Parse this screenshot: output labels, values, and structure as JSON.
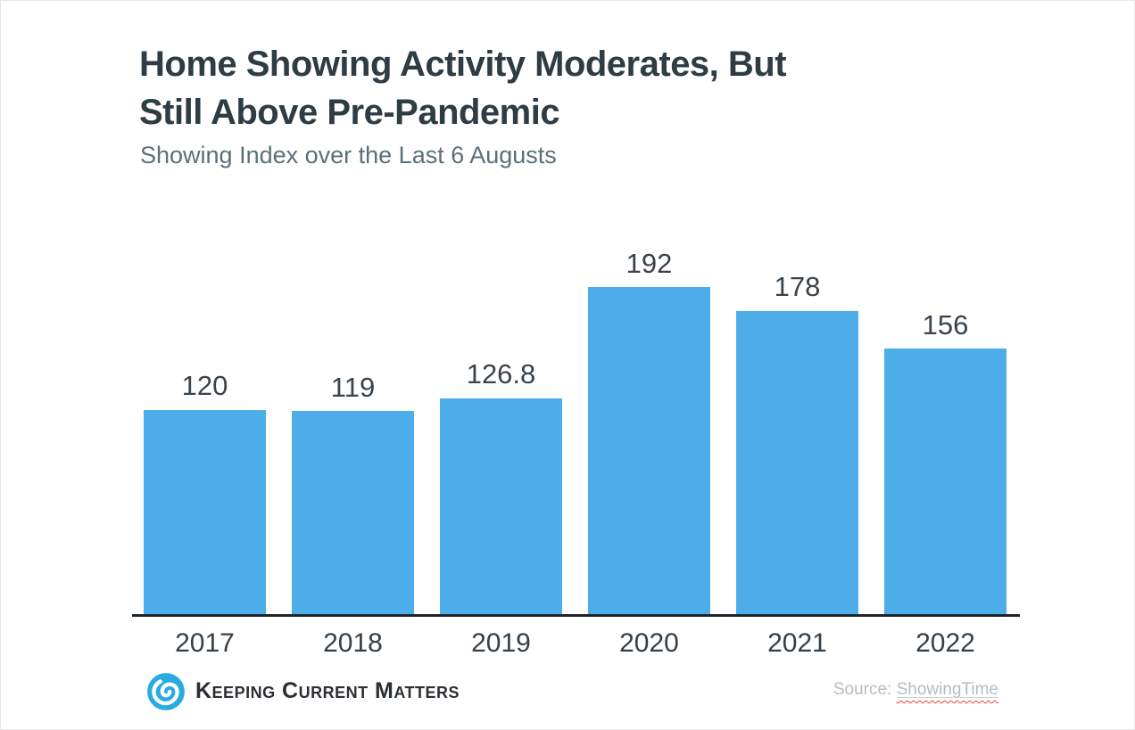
{
  "header": {
    "title_line1": "Home Showing Activity Moderates, But",
    "title_line2": "Still Above Pre-Pandemic",
    "subtitle": "Showing Index over the Last 6 Augusts"
  },
  "chart_data": {
    "type": "bar",
    "title": "Home Showing Activity Moderates, But Still Above Pre-Pandemic",
    "subtitle": "Showing Index over the Last 6 Augusts",
    "categories": [
      "2017",
      "2018",
      "2019",
      "2020",
      "2021",
      "2022"
    ],
    "values": [
      120,
      119,
      126.8,
      192,
      178,
      156
    ],
    "value_labels": [
      "120",
      "119",
      "126.8",
      "192",
      "178",
      "156"
    ],
    "xlabel": "",
    "ylabel": "",
    "ylim": [
      0,
      235
    ],
    "grid": false,
    "legend": false,
    "bar_color": "#4dade9",
    "axis_color": "#1d252b",
    "value_label_color": "#39434c"
  },
  "footer": {
    "brand_name": "Keeping Current Matters",
    "brand_logo_icon": "kcm-swirl-icon",
    "brand_color": "#29abe2",
    "source_prefix": "Source: ",
    "source_name": "ShowingTime"
  }
}
